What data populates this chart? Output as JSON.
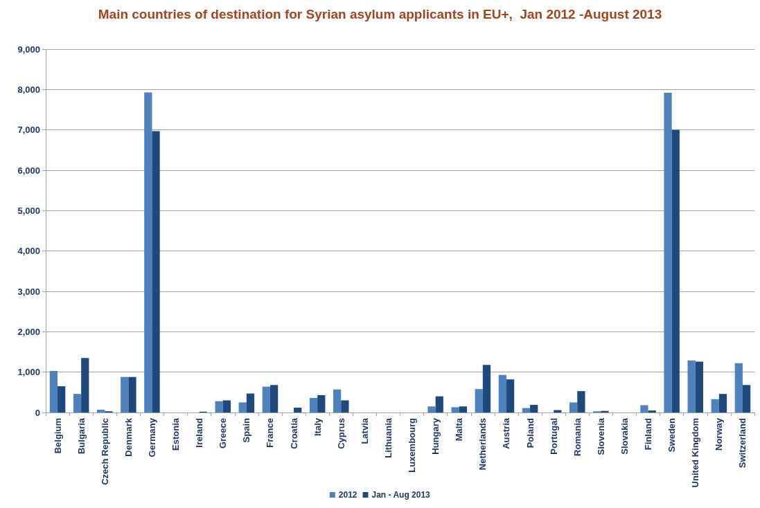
{
  "chart_data": {
    "type": "bar",
    "title": "Main countries of destination for Syrian asylum applicants in EU+,  Jan 2012 -August 2013",
    "categories": [
      "Belgium",
      "Bulgaria",
      "Czech Republic",
      "Denmark",
      "Germany",
      "Estonia",
      "Ireland",
      "Greece",
      "Spain",
      "France",
      "Croatia",
      "Italy",
      "Cyprus",
      "Latvia",
      "Lithuania",
      "Luxembourg",
      "Hungary",
      "Malta",
      "Netherlands",
      "Austria",
      "Poland",
      "Portugal",
      "Romania",
      "Slovenia",
      "Slovakia",
      "Finland",
      "Sweden",
      "United Kingdom",
      "Norway",
      "Switzerland"
    ],
    "series": [
      {
        "name": "2012",
        "color": "#4f81bd",
        "values": [
          1030,
          460,
          70,
          880,
          7930,
          0,
          0,
          280,
          250,
          640,
          0,
          360,
          570,
          0,
          0,
          0,
          150,
          130,
          580,
          930,
          110,
          0,
          250,
          30,
          0,
          180,
          7920,
          1290,
          330,
          1220
        ]
      },
      {
        "name": "Jan - Aug 2013",
        "color": "#1f497d",
        "values": [
          650,
          1350,
          30,
          880,
          6970,
          0,
          20,
          300,
          470,
          680,
          120,
          430,
          300,
          0,
          0,
          0,
          400,
          150,
          1180,
          820,
          190,
          60,
          530,
          40,
          0,
          50,
          7000,
          1260,
          460,
          680
        ]
      }
    ],
    "ylim": [
      0,
      9000
    ],
    "yticks": [
      0,
      {
        "value": 1000,
        "label": "1,000"
      },
      {
        "value": 2000,
        "label": "2,000"
      },
      {
        "value": 3000,
        "label": "3,000"
      },
      {
        "value": 4000,
        "label": "4,000"
      },
      {
        "value": 5000,
        "label": "5,000"
      },
      {
        "value": 6000,
        "label": "6,000"
      },
      {
        "value": 7000,
        "label": "7,000"
      },
      {
        "value": 8000,
        "label": "8,000"
      },
      {
        "value": 9000,
        "label": "9,000"
      }
    ],
    "grid": "y",
    "legend": "bottom"
  }
}
